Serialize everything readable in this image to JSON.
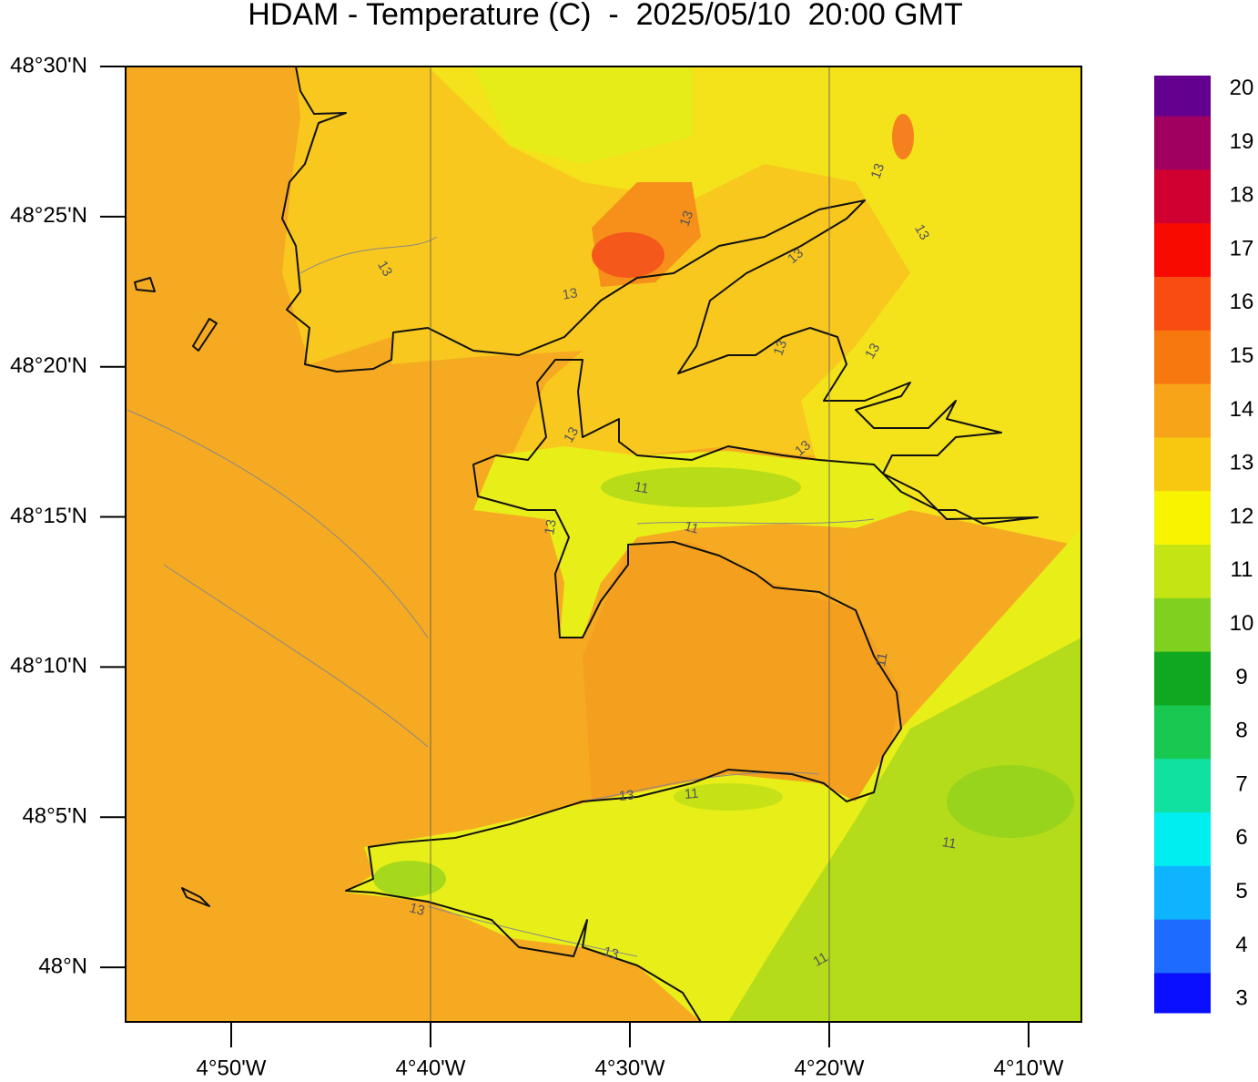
{
  "map": {
    "title": "HDAM - Temperature (C)  -  2025/05/10  20:00 GMT",
    "lat": {
      "lim": [
        47.9697,
        48.5
      ],
      "ticks": [
        {
          "value": 48.5,
          "label": "48°30'N"
        },
        {
          "value": 48.41667,
          "label": "48°25'N"
        },
        {
          "value": 48.33333,
          "label": "48°20'N"
        },
        {
          "value": 48.25,
          "label": "48°15'N"
        },
        {
          "value": 48.16667,
          "label": "48°10'N"
        },
        {
          "value": 48.08333,
          "label": "48°5'N"
        },
        {
          "value": 48.0,
          "label": "48°N"
        }
      ]
    },
    "lon": {
      "lim": [
        -4.9216,
        -4.1225
      ],
      "ticks": [
        {
          "value": -4.83333,
          "label": "4°50'W"
        },
        {
          "value": -4.66667,
          "label": "4°40'W"
        },
        {
          "value": -4.5,
          "label": "4°30'W"
        },
        {
          "value": -4.33333,
          "label": "4°20'W"
        },
        {
          "value": -4.16667,
          "label": "4°10'W"
        }
      ]
    },
    "colorbar": {
      "lim": [
        2.75,
        20.25
      ],
      "ticks": [
        3,
        4,
        5,
        6,
        7,
        8,
        9,
        10,
        11,
        12,
        13,
        14,
        15,
        16,
        17,
        18,
        19,
        20
      ],
      "colors": [
        "#0a10ff",
        "#1e6cff",
        "#0fb4ff",
        "#00eef0",
        "#10e0a0",
        "#18c850",
        "#10a820",
        "#80d020",
        "#c4e414",
        "#f8f400",
        "#f8c810",
        "#f8a418",
        "#f87810",
        "#f84c10",
        "#f80a00",
        "#d00030",
        "#a00060",
        "#640090"
      ]
    },
    "contour_labels": [
      "13",
      "13",
      "13",
      "13",
      "13",
      "13",
      "13",
      "13",
      "11",
      "13",
      "13",
      "13",
      "11",
      "11",
      "11",
      "13",
      "13",
      "11"
    ]
  }
}
